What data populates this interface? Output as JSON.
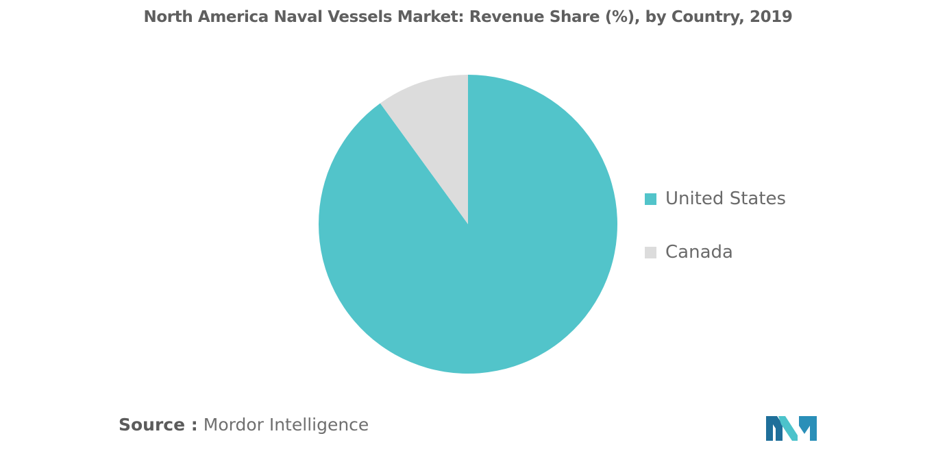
{
  "chart_data": {
    "type": "pie",
    "title": "North America Naval Vessels Market: Revenue Share (%), by Country, 2019",
    "series": [
      {
        "name": "United States",
        "value": 90,
        "color": "#52c4ca"
      },
      {
        "name": "Canada",
        "value": 10,
        "color": "#dcdcdc"
      }
    ],
    "start_angle_deg": 0,
    "direction": "clockwise",
    "legend_position": "right",
    "show_value_labels": false
  },
  "source": {
    "prefix": "Source :",
    "text": "Mordor Intelligence"
  },
  "logo": {
    "icon": "mordor-intelligence-logo-icon",
    "colors": [
      "#1f6f9a",
      "#4cc3cb",
      "#2a8fb8"
    ]
  }
}
